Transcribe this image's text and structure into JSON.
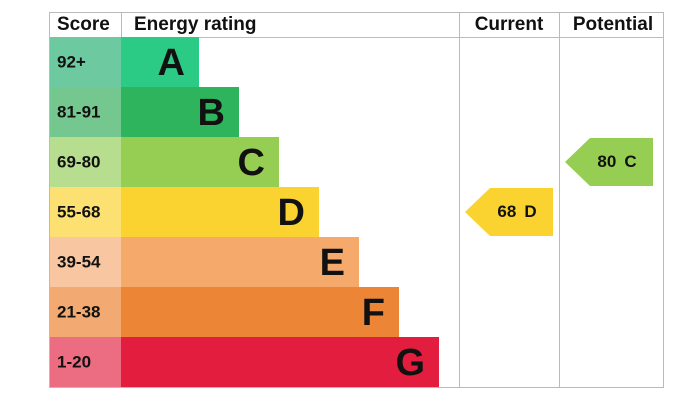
{
  "header": {
    "score": "Score",
    "rating": "Energy rating",
    "current": "Current",
    "potential": "Potential"
  },
  "bands": [
    {
      "score": "92+",
      "letter": "A",
      "color": "#2bcb86",
      "score_color": "#6dcaa0"
    },
    {
      "score": "81-91",
      "letter": "B",
      "color": "#2db45c",
      "score_color": "#73c78f"
    },
    {
      "score": "69-80",
      "letter": "C",
      "color": "#95ce52",
      "score_color": "#b7dd8f"
    },
    {
      "score": "55-68",
      "letter": "D",
      "color": "#fad330",
      "score_color": "#fce172"
    },
    {
      "score": "39-54",
      "letter": "E",
      "color": "#f5aa6b",
      "score_color": "#f8c6a0"
    },
    {
      "score": "21-38",
      "letter": "F",
      "color": "#ec8535",
      "score_color": "#f2aa72"
    },
    {
      "score": "1-20",
      "letter": "G",
      "color": "#e31d3d",
      "score_color": "#ec6d81"
    }
  ],
  "current": {
    "value": 68,
    "letter": "D"
  },
  "potential": {
    "value": 80,
    "letter": "C"
  }
}
